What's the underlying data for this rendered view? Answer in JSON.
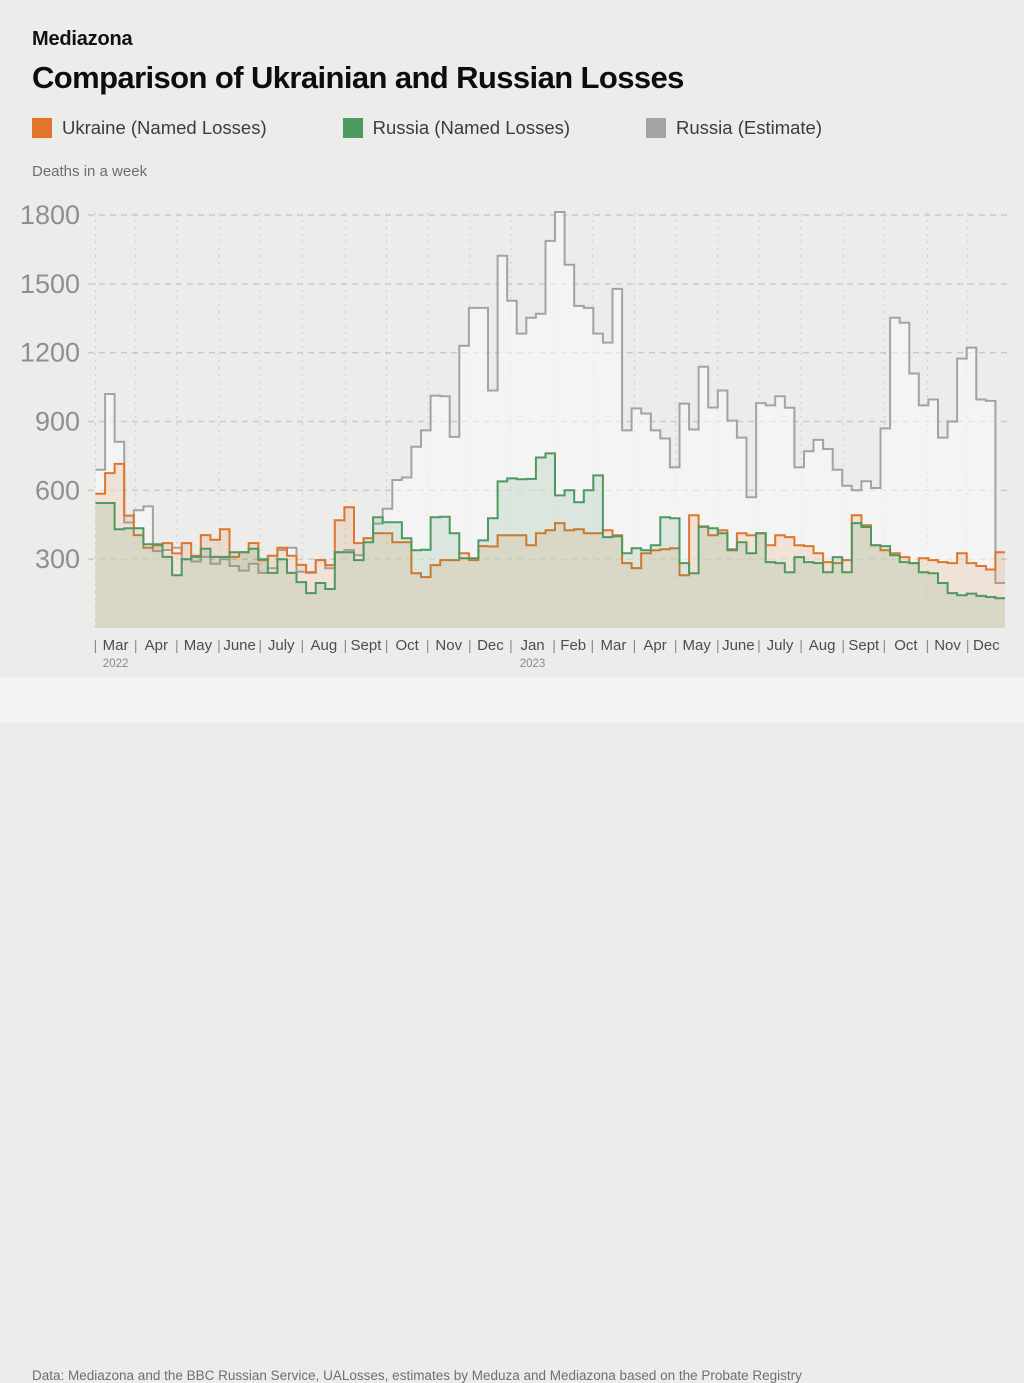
{
  "header": {
    "brand": "Mediazona",
    "title": "Comparison of Ukrainian and Russian Losses"
  },
  "legend": [
    {
      "label": "Ukraine (Named Losses)",
      "color": "#e0752c"
    },
    {
      "label": "Russia (Named Losses)",
      "color": "#4e9960"
    },
    {
      "label": "Russia (Estimate)",
      "color": "#a3a3a3"
    }
  ],
  "axis_note": "Deaths in a week",
  "footer": "Data: Mediazona and the BBC Russian Service, UALosses, estimates by Meduza and Mediazona based on the Probate Registry",
  "chart_data": {
    "type": "area",
    "step": true,
    "title": "Comparison of Ukrainian and Russian Losses",
    "xlabel": "",
    "ylabel": "Deaths in a week",
    "ylim": [
      0,
      1880
    ],
    "yticks": [
      300,
      600,
      900,
      1200,
      1500,
      1800
    ],
    "grid": true,
    "legend_position": "top",
    "x_unit": "week",
    "x_range_note": "weekly values, late Feb 2022 - late Dec 2023",
    "months": [
      "Mar",
      "Apr",
      "May",
      "June",
      "July",
      "Aug",
      "Sept",
      "Oct",
      "Nov",
      "Dec",
      "Jan",
      "Feb",
      "Mar",
      "Apr",
      "May",
      "June",
      "July",
      "Aug",
      "Sept",
      "Oct",
      "Nov",
      "Dec"
    ],
    "month_boundaries_weeks": [
      0,
      4.2,
      8.5,
      12.9,
      17.2,
      21.6,
      26.1,
      30.4,
      34.7,
      39.1,
      43.4,
      47.9,
      51.9,
      56.3,
      60.6,
      65.0,
      69.3,
      73.7,
      78.1,
      82.4,
      86.9,
      91.1
    ],
    "year_marks": [
      {
        "label": "2022",
        "month_index": 0
      },
      {
        "label": "2023",
        "month_index": 10
      }
    ],
    "series": [
      {
        "name": "Ukraine (Named Losses)",
        "color": "#e0752c",
        "fill": "rgba(224,117,44,0.14)",
        "values": [
          585,
          675,
          715,
          490,
          405,
          350,
          360,
          370,
          325,
          370,
          315,
          405,
          385,
          430,
          310,
          330,
          370,
          295,
          315,
          350,
          315,
          275,
          243,
          296,
          274,
          470,
          526,
          370,
          391,
          413,
          413,
          374,
          374,
          239,
          222,
          274,
          296,
          296,
          326,
          296,
          357,
          355,
          404,
          404,
          404,
          361,
          413,
          426,
          457,
          426,
          430,
          413,
          413,
          426,
          404,
          283,
          261,
          326,
          339,
          343,
          348,
          230,
          491,
          440,
          404,
          426,
          343,
          413,
          404,
          413,
          361,
          404,
          396,
          361,
          357,
          326,
          287,
          283,
          296,
          491,
          448,
          361,
          339,
          326,
          309,
          283,
          304,
          296,
          287,
          283,
          326,
          283,
          270,
          255,
          330
        ]
      },
      {
        "name": "Russia (Named Losses)",
        "color": "#4e9960",
        "fill": "rgba(74,150,90,0.14)",
        "values": [
          545,
          545,
          430,
          435,
          435,
          365,
          365,
          310,
          230,
          300,
          310,
          345,
          310,
          310,
          330,
          330,
          345,
          300,
          240,
          300,
          240,
          200,
          152,
          196,
          170,
          330,
          330,
          296,
          374,
          483,
          461,
          461,
          391,
          339,
          341,
          483,
          485,
          413,
          304,
          304,
          382,
          478,
          639,
          652,
          648,
          650,
          743,
          761,
          578,
          600,
          548,
          600,
          665,
          396,
          400,
          326,
          348,
          339,
          361,
          483,
          478,
          283,
          239,
          443,
          435,
          413,
          339,
          374,
          326,
          413,
          287,
          283,
          243,
          309,
          287,
          283,
          243,
          309,
          243,
          457,
          440,
          361,
          357,
          317,
          287,
          283,
          243,
          239,
          196,
          152,
          143,
          150,
          140,
          135,
          130
        ]
      },
      {
        "name": "Russia (Estimate)",
        "color": "#a3a3a3",
        "fill": "rgba(252,252,252,0.55)",
        "values": [
          690,
          1020,
          812,
          460,
          513,
          530,
          335,
          340,
          350,
          300,
          290,
          310,
          280,
          300,
          270,
          250,
          280,
          240,
          260,
          340,
          350,
          245,
          240,
          296,
          260,
          330,
          340,
          317,
          391,
          455,
          520,
          645,
          656,
          790,
          861,
          1013,
          1010,
          833,
          1230,
          1395,
          1395,
          1035,
          1622,
          1426,
          1283,
          1352,
          1370,
          1687,
          1813,
          1583,
          1404,
          1395,
          1283,
          1244,
          1478,
          861,
          957,
          935,
          861,
          826,
          700,
          978,
          865,
          1139,
          961,
          1035,
          904,
          830,
          570,
          980,
          970,
          1010,
          960,
          700,
          770,
          820,
          780,
          690,
          620,
          600,
          640,
          610,
          870,
          1352,
          1330,
          1109,
          970,
          996,
          830,
          900,
          1174,
          1222,
          996,
          990,
          196
        ]
      }
    ]
  }
}
